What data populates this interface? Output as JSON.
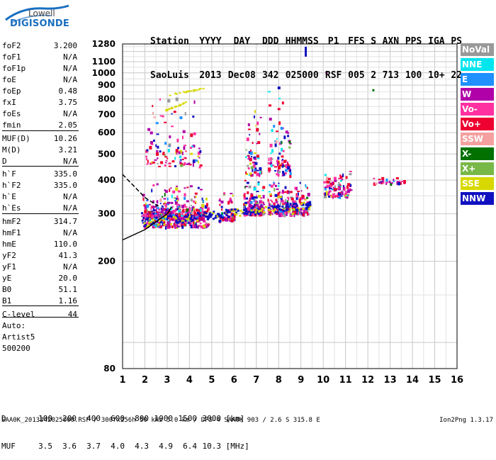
{
  "logo": {
    "line1": "Lowell",
    "line2": "DIGISONDE"
  },
  "header": {
    "row1": [
      "Station",
      "YYYY",
      "DAY",
      "DDD",
      "HHMMSS",
      "P1",
      "FFS",
      "S",
      "AXN",
      "PPS",
      "IGA",
      "PS"
    ],
    "row2": [
      "SaoLuis",
      "2013",
      "Dec08",
      "342",
      "025000",
      "RSF",
      "005",
      "2",
      "713",
      "100",
      "10+",
      "22"
    ]
  },
  "params": [
    {
      "label": "foF2",
      "value": "3.200"
    },
    {
      "label": "foF1",
      "value": "N/A"
    },
    {
      "label": "foF1p",
      "value": "N/A"
    },
    {
      "label": "foE",
      "value": "N/A"
    },
    {
      "label": "foEp",
      "value": "0.48"
    },
    {
      "label": "fxI",
      "value": "3.75"
    },
    {
      "label": "foEs",
      "value": "N/A"
    },
    {
      "label": "fmin",
      "value": "2.05"
    },
    {
      "label": "MUF(D)",
      "value": "10.26"
    },
    {
      "label": "M(D)",
      "value": "3.21"
    },
    {
      "label": "D",
      "value": "N/A"
    },
    {
      "label": "h`F",
      "value": "335.0"
    },
    {
      "label": "h`F2",
      "value": "335.0"
    },
    {
      "label": "h`E",
      "value": "N/A"
    },
    {
      "label": "h`Es",
      "value": "N/A"
    },
    {
      "label": "hmF2",
      "value": "314.7"
    },
    {
      "label": "hmF1",
      "value": "N/A"
    },
    {
      "label": "hmE",
      "value": "110.0"
    },
    {
      "label": "yF2",
      "value": "41.3"
    },
    {
      "label": "yF1",
      "value": "N/A"
    },
    {
      "label": "yE",
      "value": "20.0"
    },
    {
      "label": "B0",
      "value": "51.1"
    },
    {
      "label": "B1",
      "value": "1.16"
    },
    {
      "label": "C-level",
      "value": "44"
    },
    {
      "label": "Auto:",
      "value": ""
    },
    {
      "label": "Artist5",
      "value": ""
    },
    {
      "label": "500200",
      "value": ""
    }
  ],
  "legend": [
    {
      "label": "NoVal",
      "color": "#999999"
    },
    {
      "label": "NNE",
      "color": "#00e5ee"
    },
    {
      "label": "E",
      "color": "#1e90ff"
    },
    {
      "label": "W",
      "color": "#b000a8"
    },
    {
      "label": "Vo-",
      "color": "#ff30a0"
    },
    {
      "label": "Vo+",
      "color": "#ee0030"
    },
    {
      "label": "SSW",
      "color": "#f4a0a0"
    },
    {
      "label": "X-",
      "color": "#007000"
    },
    {
      "label": "X+",
      "color": "#78b848"
    },
    {
      "label": "SSE",
      "color": "#d8d800"
    },
    {
      "label": "NNW",
      "color": "#1010c0"
    }
  ],
  "dmuf": {
    "d_label": "D",
    "d_values": [
      "100",
      "200",
      "400",
      "600",
      "800",
      "1000",
      "1500",
      "3000"
    ],
    "d_unit": "[km]",
    "muf_label": "MUF",
    "muf_values": [
      "3.5",
      "3.6",
      "3.7",
      "4.0",
      "4.3",
      "4.9",
      "6.4",
      "10.3"
    ],
    "muf_unit": "[MHz]"
  },
  "footer": {
    "left": "SAA0K_2013342025000.RSF / 300fx256h 50 kHz 5.0 km / DPS-4 SAA0K 903 / 2.6 S 315.8 E",
    "right": "Ion2Png 1.3.17"
  },
  "chart_data": {
    "type": "scatter",
    "title": "",
    "xlabel": "",
    "ylabel": "",
    "xlim": [
      1,
      16
    ],
    "ylim": [
      80,
      1280
    ],
    "y_scale": "log",
    "xticks": [
      1,
      2,
      3,
      4,
      5,
      6,
      7,
      8,
      9,
      10,
      11,
      12,
      13,
      14,
      15,
      16
    ],
    "yticks": [
      80,
      200,
      300,
      400,
      500,
      600,
      700,
      800,
      900,
      1000,
      1100,
      1280
    ],
    "grid": true,
    "legend_position": "right",
    "trace_lines": [
      {
        "name": "profile-lower",
        "points": [
          [
            1.0,
            240
          ],
          [
            2.0,
            262
          ],
          [
            3.0,
            300
          ],
          [
            3.2,
            318
          ]
        ]
      },
      {
        "name": "profile-upper",
        "points": [
          [
            1.0,
            420
          ],
          [
            2.0,
            345
          ],
          [
            2.6,
            320
          ]
        ]
      }
    ],
    "echo_clusters": [
      {
        "x": [
          1.8,
          4.8
        ],
        "h": [
          270,
          400
        ],
        "density": 320
      },
      {
        "x": [
          1.9,
          4.6
        ],
        "h": [
          290,
          330
        ],
        "density": 260
      },
      {
        "x": [
          5.3,
          6.0
        ],
        "h": [
          285,
          370
        ],
        "density": 80
      },
      {
        "x": [
          6.4,
          7.3
        ],
        "h": [
          300,
          420
        ],
        "density": 140
      },
      {
        "x": [
          7.5,
          9.3
        ],
        "h": [
          300,
          410
        ],
        "density": 240
      },
      {
        "x": [
          10.0,
          11.2
        ],
        "h": [
          350,
          460
        ],
        "density": 110
      },
      {
        "x": [
          12.2,
          13.6
        ],
        "h": [
          390,
          415
        ],
        "density": 30
      },
      {
        "x": [
          2.0,
          4.5
        ],
        "h": [
          450,
          900
        ],
        "density": 110
      },
      {
        "x": [
          6.5,
          7.2
        ],
        "h": [
          420,
          880
        ],
        "density": 60
      },
      {
        "x": [
          7.5,
          8.5
        ],
        "h": [
          420,
          1000
        ],
        "density": 90
      }
    ],
    "oblique_traces": [
      {
        "x": [
          3.0,
          4.6
        ],
        "h": [
          830,
          880
        ],
        "color": "SSE"
      },
      {
        "x": [
          2.9,
          3.8
        ],
        "h": [
          730,
          780
        ],
        "color": "SSE"
      }
    ]
  }
}
